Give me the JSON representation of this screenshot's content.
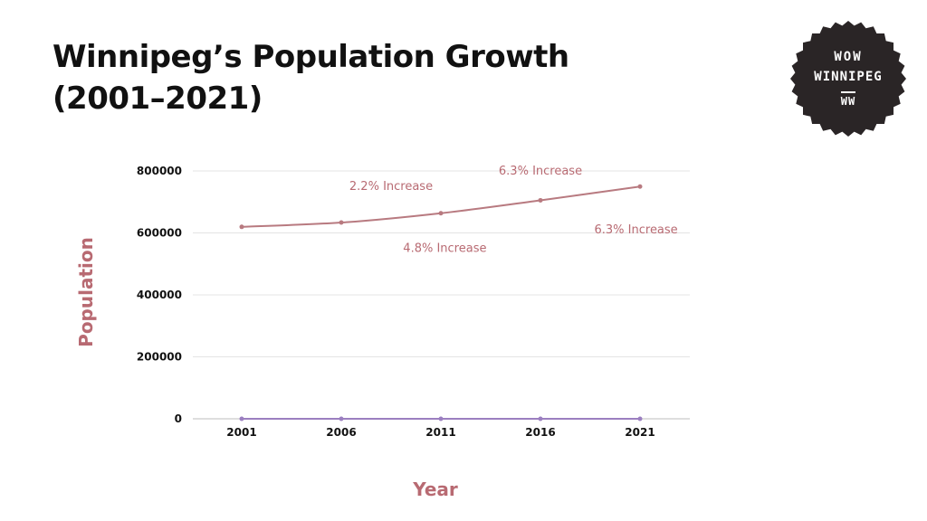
{
  "header": {
    "title_line1": "Winnipeg’s Population Growth",
    "title_line2": "(2001–2021)"
  },
  "logo": {
    "line1": "WOW",
    "line2": "WINNIPEG",
    "line3": "WW",
    "color": "#2a2526"
  },
  "chart_data": {
    "type": "line",
    "title": "",
    "xlabel": "Year",
    "ylabel": "Population",
    "categories": [
      "2001",
      "2006",
      "2011",
      "2016",
      "2021"
    ],
    "ylim": [
      0,
      800000
    ],
    "yticks": [
      "0",
      "200000",
      "400000",
      "600000",
      "800000"
    ],
    "grid": true,
    "series": [
      {
        "name": "",
        "color": "#b87a80",
        "values": [
          619544,
          633451,
          663617,
          705244,
          749607
        ]
      },
      {
        "name": "",
        "color": "#9b7fc0",
        "values": [
          0,
          0,
          0,
          0,
          0
        ]
      }
    ],
    "annotations": [
      {
        "text": "2.2% Increase",
        "x": 2008.5,
        "y": 750000
      },
      {
        "text": "4.8% Increase",
        "x": 2011.2,
        "y": 550000
      },
      {
        "text": "6.3% Increase",
        "x": 2016,
        "y": 800000
      },
      {
        "text": "6.3% Increase",
        "x": 2020.8,
        "y": 610000
      }
    ]
  }
}
